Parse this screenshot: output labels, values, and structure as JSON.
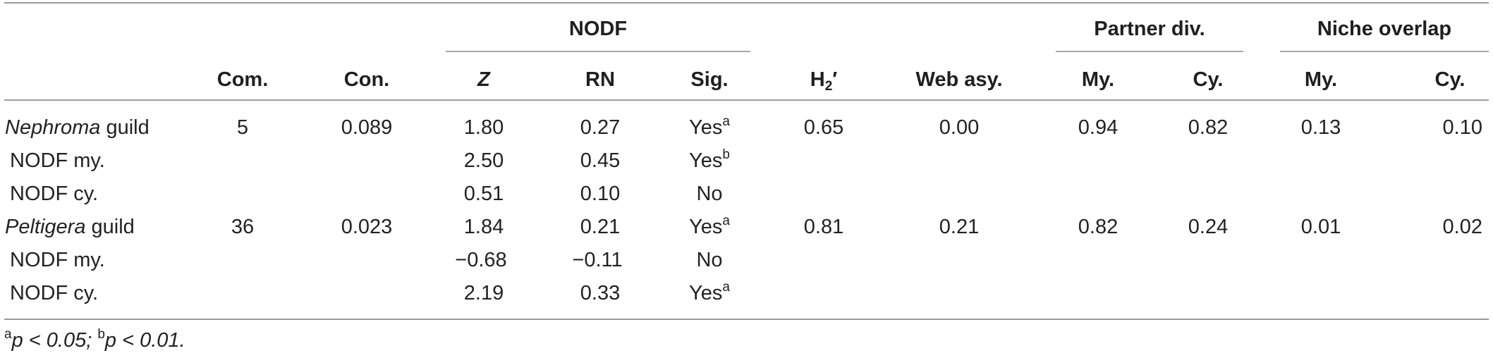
{
  "table": {
    "group_headers": {
      "nodf": "NODF",
      "partner_div": "Partner div.",
      "niche_overlap": "Niche overlap"
    },
    "columns": {
      "com": "Com.",
      "con": "Con.",
      "z": "Z",
      "rn": "RN",
      "sig": "Sig.",
      "h2_base": "H",
      "h2_sub": "2",
      "h2_prime": "′",
      "web_asy": "Web asy.",
      "pd_my": "My.",
      "pd_cy": "Cy.",
      "no_my": "My.",
      "no_cy": "Cy."
    },
    "rows": [
      {
        "label_italic": "Nephroma",
        "label_rest": " guild",
        "com": "5",
        "con": "0.089",
        "z": "1.80",
        "rn": "0.27",
        "sig": "Yes",
        "sig_sup": "a",
        "h2": "0.65",
        "web": "0.00",
        "pd_my": "0.94",
        "pd_cy": "0.82",
        "no_my": "0.13",
        "no_cy": "0.10"
      },
      {
        "label_italic": "",
        "label_rest": "NODF my.",
        "com": "",
        "con": "",
        "z": "2.50",
        "rn": "0.45",
        "sig": "Yes",
        "sig_sup": "b",
        "h2": "",
        "web": "",
        "pd_my": "",
        "pd_cy": "",
        "no_my": "",
        "no_cy": ""
      },
      {
        "label_italic": "",
        "label_rest": "NODF cy.",
        "com": "",
        "con": "",
        "z": "0.51",
        "rn": "0.10",
        "sig": "No",
        "sig_sup": "",
        "h2": "",
        "web": "",
        "pd_my": "",
        "pd_cy": "",
        "no_my": "",
        "no_cy": ""
      },
      {
        "label_italic": "Peltigera",
        "label_rest": " guild",
        "com": "36",
        "con": "0.023",
        "z": "1.84",
        "rn": "0.21",
        "sig": "Yes",
        "sig_sup": "a",
        "h2": "0.81",
        "web": "0.21",
        "pd_my": "0.82",
        "pd_cy": "0.24",
        "no_my": "0.01",
        "no_cy": "0.02"
      },
      {
        "label_italic": "",
        "label_rest": "NODF my.",
        "com": "",
        "con": "",
        "z": "−0.68",
        "rn": "−0.11",
        "sig": "No",
        "sig_sup": "",
        "h2": "",
        "web": "",
        "pd_my": "",
        "pd_cy": "",
        "no_my": "",
        "no_cy": ""
      },
      {
        "label_italic": "",
        "label_rest": "NODF cy.",
        "com": "",
        "con": "",
        "z": "2.19",
        "rn": "0.33",
        "sig": "Yes",
        "sig_sup": "a",
        "h2": "",
        "web": "",
        "pd_my": "",
        "pd_cy": "",
        "no_my": "",
        "no_cy": ""
      }
    ],
    "footnote": {
      "a_sup": "a",
      "a_text": "p < 0.05; ",
      "b_sup": "b",
      "b_text": "p < 0.01."
    }
  }
}
